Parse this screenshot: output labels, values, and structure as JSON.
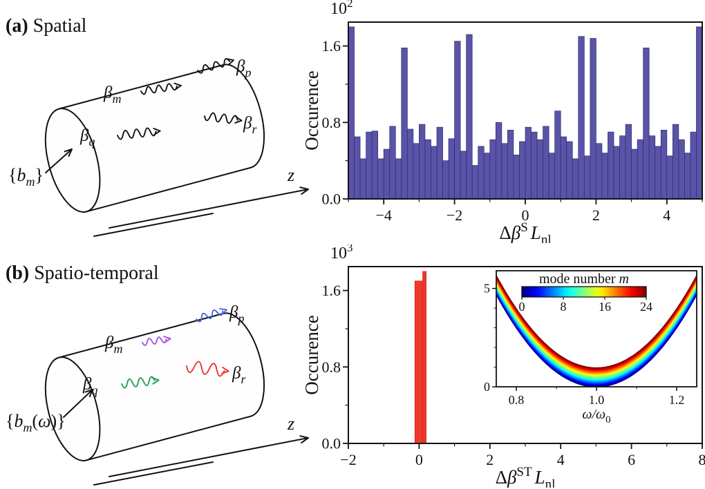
{
  "panel_a": {
    "tag": "(a)",
    "title": "Spatial",
    "z_label": "z",
    "input": {
      "open": "{",
      "base": "b",
      "sub": "m",
      "close": "}",
      "color": "#111111"
    },
    "betas": [
      {
        "base": "β",
        "sub": "m",
        "color": "#111111"
      },
      {
        "base": "β",
        "sub": "p",
        "color": "#111111"
      },
      {
        "base": "β",
        "sub": "q",
        "color": "#111111"
      },
      {
        "base": "β",
        "sub": "r",
        "color": "#111111"
      }
    ],
    "plot": {
      "scale_base": "10",
      "scale_exp": "2",
      "ylabel": "Occurence",
      "xlabel": {
        "delta": "Δ",
        "beta": "β",
        "sup": "S",
        "L": "L",
        "sub": "nl"
      }
    }
  },
  "panel_b": {
    "tag": "(b)",
    "title": "Spatio-temporal",
    "z_label": "z",
    "input": {
      "open": "{",
      "base": "b",
      "sub": "m",
      "arg_open": "(",
      "arg": "ω",
      "arg_close": ")",
      "close": "}",
      "color": "#e8362b"
    },
    "betas": [
      {
        "base": "β",
        "sub": "m",
        "color": "#a94fe3"
      },
      {
        "base": "β",
        "sub": "p",
        "color": "#4766e0"
      },
      {
        "base": "β",
        "sub": "q",
        "color": "#1fa04d"
      },
      {
        "base": "β",
        "sub": "r",
        "color": "#e8362b"
      }
    ],
    "plot": {
      "scale_base": "10",
      "scale_exp": "3",
      "ylabel": "Occurence",
      "xlabel": {
        "delta": "Δ",
        "beta": "β",
        "sup": "ST",
        "L": "L",
        "sub": "nl"
      }
    },
    "inset": {
      "colorbar_label_text": "mode number ",
      "colorbar_label_var": "m",
      "xlabel_base": "ω/ω",
      "xlabel_sub": "0"
    }
  },
  "chart_data": [
    {
      "id": "hist_spatial",
      "type": "bar",
      "xlabel": "Δβ^S L_nl",
      "ylabel": "Occurence",
      "y_scale": "1e2",
      "xlim": [
        -5,
        5
      ],
      "ylim": [
        0,
        1.85
      ],
      "x_ticks": [
        -4,
        -2,
        0,
        2,
        4
      ],
      "x_minor_step": 1,
      "y_ticks": [
        0.0,
        0.8,
        1.6
      ],
      "y_minor_step": 0.4,
      "bar_color": "#5a54a8",
      "bar_edge": "#2e2a6e",
      "bin_start": -5.0,
      "bin_width": 0.1666667,
      "values": [
        1.8,
        0.65,
        0.42,
        0.7,
        0.71,
        0.42,
        0.52,
        0.76,
        0.42,
        1.58,
        0.73,
        0.58,
        0.78,
        0.62,
        0.55,
        0.75,
        0.4,
        0.63,
        1.65,
        0.5,
        1.72,
        0.35,
        0.55,
        0.48,
        0.62,
        0.8,
        0.58,
        0.72,
        0.46,
        0.6,
        0.75,
        0.7,
        0.62,
        0.76,
        0.48,
        0.92,
        0.65,
        0.6,
        0.42,
        1.7,
        0.45,
        1.68,
        0.58,
        0.48,
        0.7,
        0.55,
        0.66,
        0.78,
        0.52,
        0.62,
        1.58,
        0.66,
        0.55,
        0.72,
        0.45,
        0.78,
        0.62,
        0.48,
        0.7,
        1.8
      ]
    },
    {
      "id": "hist_spatiotemporal",
      "type": "bar",
      "xlabel": "Δβ^ST L_nl",
      "ylabel": "Occurence",
      "y_scale": "1e3",
      "xlim": [
        -2,
        8
      ],
      "ylim": [
        0,
        1.85
      ],
      "x_ticks": [
        -2,
        0,
        2,
        4,
        6,
        8
      ],
      "x_minor_step": 1,
      "y_ticks": [
        0.0,
        0.8,
        1.6
      ],
      "y_minor_step": 0.4,
      "bar_color": "#f0372b",
      "bar_edge": "#cf2318",
      "bars": [
        {
          "x": -0.12,
          "width": 0.22,
          "value": 1.7
        },
        {
          "x": 0.1,
          "width": 0.1,
          "value": 1.8
        }
      ]
    },
    {
      "id": "inset_dispersion",
      "type": "line",
      "xlabel": "ω/ω0",
      "xlim": [
        0.75,
        1.25
      ],
      "ylim": [
        0,
        5.9
      ],
      "x_ticks": [
        0.8,
        1.0,
        1.2
      ],
      "x_minor_ticks": [
        0.9,
        1.1
      ],
      "y_ticks": [
        0,
        5
      ],
      "y_minor_ticks": [
        1,
        2,
        3,
        4
      ],
      "colorbar": {
        "label": "mode number m",
        "ticks": [
          0,
          8,
          16,
          24
        ],
        "colormap": "jet"
      },
      "modes": {
        "count": 25,
        "min": 0,
        "max": 24
      },
      "curve_model": {
        "formula": "y = 75*(x-1)^2 + 0.04*m",
        "curvature": 75,
        "offset_per_mode": 0.04
      }
    }
  ]
}
